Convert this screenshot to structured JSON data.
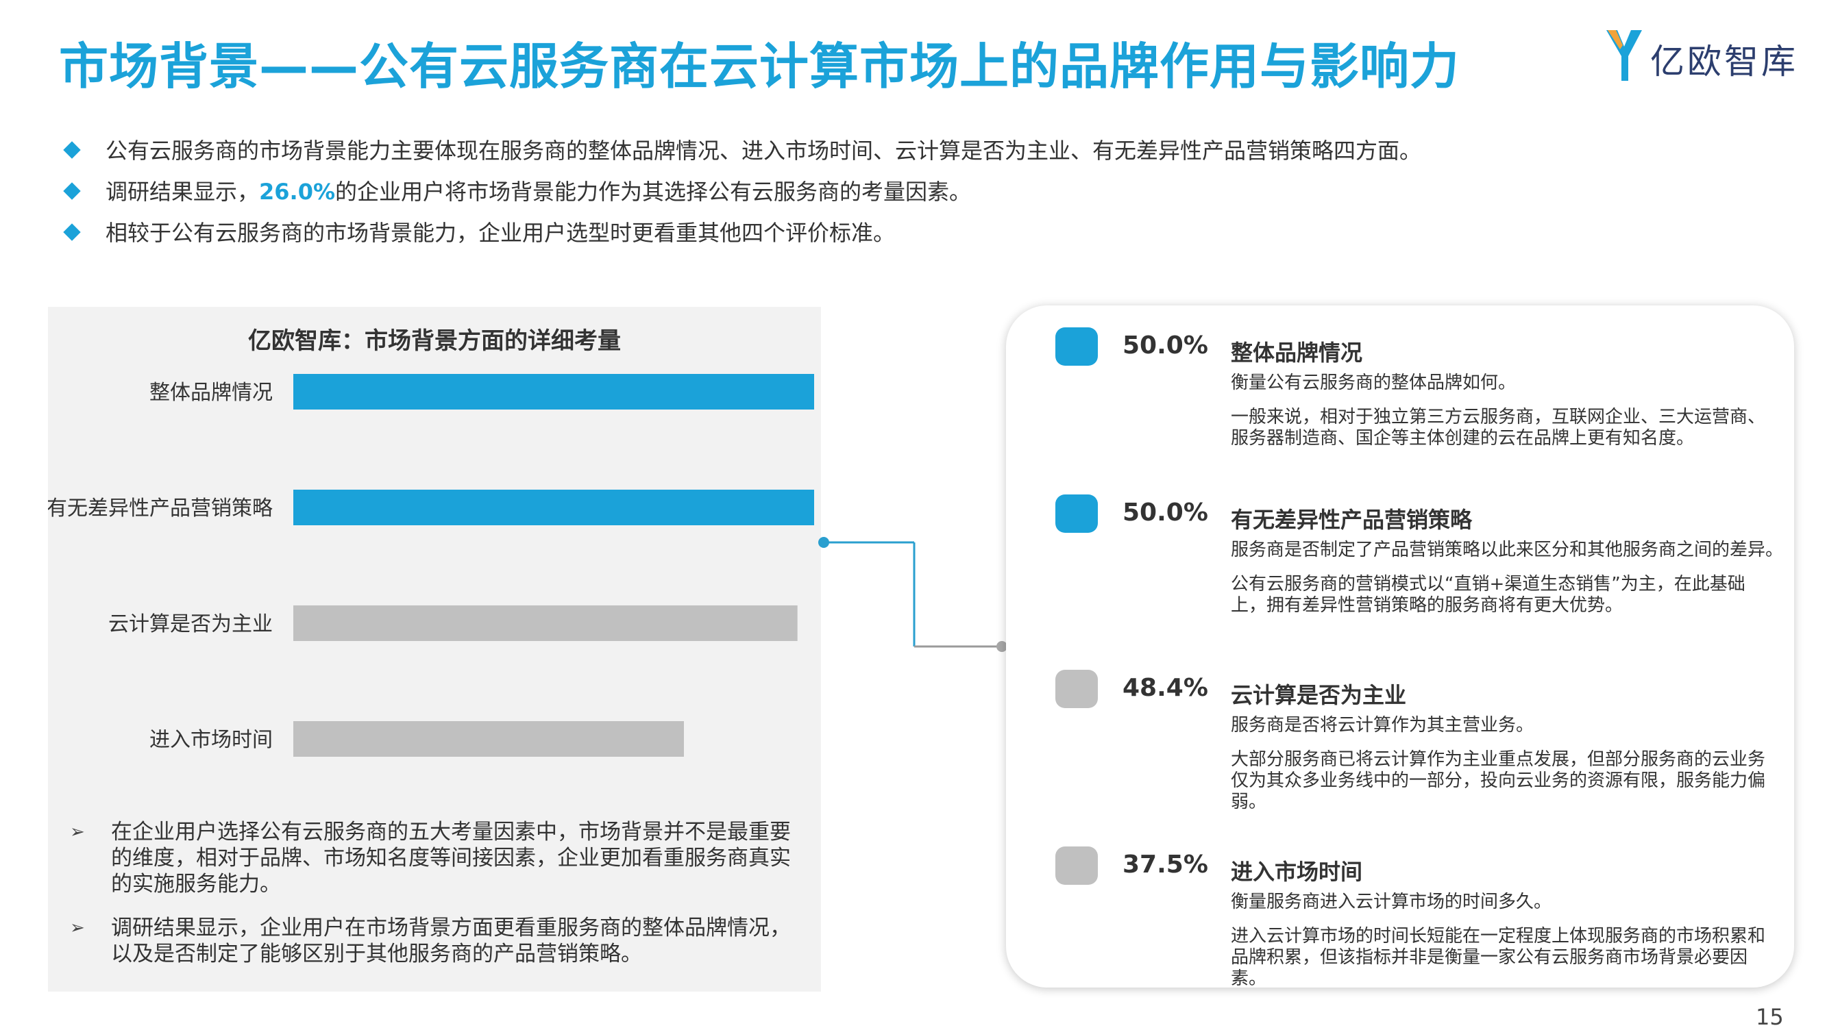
{
  "page": {
    "title": "市场背景——公有云服务商在云计算市场上的品牌作用与影响力",
    "logo_text": "亿欧智库",
    "page_number": "15"
  },
  "bullets": [
    {
      "text": "公有云服务商的市场背景能力主要体现在服务商的整体品牌情况、进入市场时间、云计算是否为主业、有无差异性产品营销策略四方面。"
    },
    {
      "before": "调研结果显示，",
      "highlight": "26.0%",
      "after": "的企业用户将市场背景能力作为其选择公有云服务商的考量因素。"
    },
    {
      "text": "相较于公有云服务商的市场背景能力，企业用户选型时更看重其他四个评价标准。"
    }
  ],
  "chart_data": {
    "type": "bar",
    "orientation": "horizontal",
    "title": "亿欧智库：市场背景方面的详细考量",
    "categories": [
      "整体品牌情况",
      "有无差异性产品营销策略",
      "云计算是否为主业",
      "进入市场时间"
    ],
    "values": [
      50.0,
      50.0,
      48.4,
      37.5
    ],
    "bar_colors": [
      "#1ba2d9",
      "#1ba2d9",
      "#c0c0c0",
      "#c0c0c0"
    ],
    "xlim": [
      0,
      50.0
    ],
    "grid": false
  },
  "notes": [
    "在企业用户选择公有云服务商的五大考量因素中，市场背景并不是最重要的维度，相对于品牌、市场知名度等间接因素，企业更加看重服务商真实的实施服务能力。",
    "调研结果显示，企业用户在市场背景方面更看重服务商的整体品牌情况，以及是否制定了能够区别于其他服务商的产品营销策略。"
  ],
  "details": [
    {
      "pct": "50.0%",
      "color": "#1ba2d9",
      "name": "整体品牌情况",
      "desc1": "衡量公有云服务商的整体品牌如何。",
      "desc2": "一般来说，相对于独立第三方云服务商，互联网企业、三大运营商、服务器制造商、国企等主体创建的云在品牌上更有知名度。"
    },
    {
      "pct": "50.0%",
      "color": "#1ba2d9",
      "name": "有无差异性产品营销策略",
      "desc1": "服务商是否制定了产品营销策略以此来区分和其他服务商之间的差异。",
      "desc2": "公有云服务商的营销模式以“直销+渠道生态销售”为主，在此基础上，拥有差异性营销策略的服务商将有更大优势。"
    },
    {
      "pct": "48.4%",
      "color": "#c0c0c0",
      "name": "云计算是否为主业",
      "desc1": "服务商是否将云计算作为其主营业务。",
      "desc2": "大部分服务商已将云计算作为主业重点发展，但部分服务商的云业务仅为其众多业务线中的一部分，投向云业务的资源有限，服务能力偏弱。"
    },
    {
      "pct": "37.5%",
      "color": "#c0c0c0",
      "name": "进入市场时间",
      "desc1": "衡量服务商进入云计算市场的时间多久。",
      "desc2": "进入云计算市场的时间长短能在一定程度上体现服务商的市场积累和品牌积累，但该指标并非是衡量一家公有云服务商市场背景必要因素。"
    }
  ]
}
